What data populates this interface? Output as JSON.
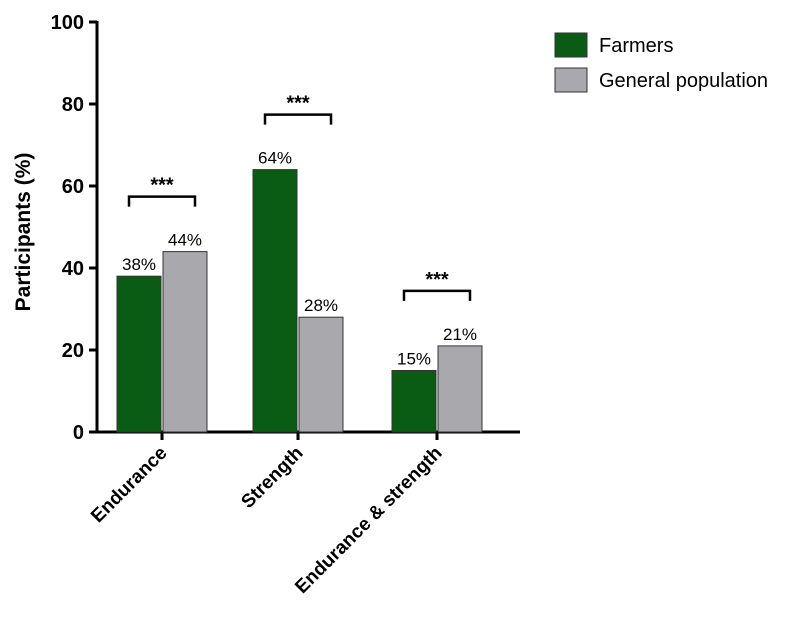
{
  "chart_data": {
    "type": "bar",
    "title": "",
    "xlabel": "",
    "ylabel": "Participants  (%)",
    "ylim": [
      0,
      100
    ],
    "yticks": [
      0,
      20,
      40,
      60,
      80,
      100
    ],
    "ytick_labels": [
      "0",
      "20",
      "40",
      "60",
      "80",
      "100"
    ],
    "categories": [
      "Endurance",
      "Strength",
      "Endurance & strength"
    ],
    "series": [
      {
        "name": "Farmers",
        "color": "#0a5c14",
        "values": [
          38,
          64,
          15
        ],
        "value_labels": [
          "38%",
          "64%",
          "15%"
        ]
      },
      {
        "name": "General population",
        "color": "#a9a9ad",
        "values": [
          44,
          28,
          21
        ],
        "value_labels": [
          "44%",
          "28%",
          "21%"
        ]
      }
    ],
    "annotations": [
      {
        "category": "Endurance",
        "text": "***"
      },
      {
        "category": "Strength",
        "text": "***"
      },
      {
        "category": "Endurance & strength",
        "text": "***"
      }
    ],
    "grid": false,
    "legend_position": "top-right"
  }
}
